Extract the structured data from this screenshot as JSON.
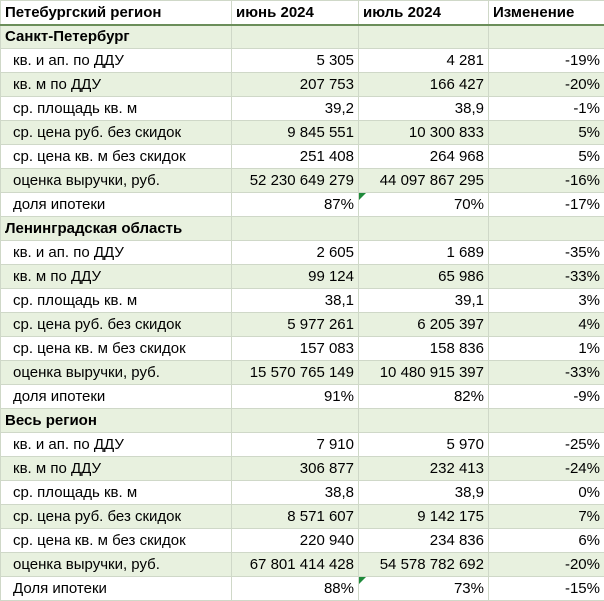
{
  "header": [
    "Петебургский регион",
    "июнь 2024",
    "июль 2024",
    "Изменение"
  ],
  "sections": [
    {
      "title": "Санкт-Петербург",
      "rows": [
        {
          "label": "кв. и ап. по ДДУ",
          "jun": "5 305",
          "jul": "4 281",
          "change": "-19%"
        },
        {
          "label": "кв. м по ДДУ",
          "jun": "207 753",
          "jul": "166 427",
          "change": "-20%"
        },
        {
          "label": "ср. площадь кв. м",
          "jun": "39,2",
          "jul": "38,9",
          "change": "-1%"
        },
        {
          "label": "ср. цена руб. без скидок",
          "jun": "9 845 551",
          "jul": "10 300 833",
          "change": "5%"
        },
        {
          "label": "ср. цена кв. м без скидок",
          "jun": "251 408",
          "jul": "264 968",
          "change": "5%"
        },
        {
          "label": "оценка выручки, руб.",
          "jun": "52 230 649 279",
          "jul": "44 097 867 295",
          "change": "-16%"
        },
        {
          "label": "доля ипотеки",
          "jun": "87%",
          "jul": "70%",
          "change": "-17%"
        }
      ]
    },
    {
      "title": "Ленинградская область",
      "rows": [
        {
          "label": "кв. и ап. по ДДУ",
          "jun": "2 605",
          "jul": "1 689",
          "change": "-35%"
        },
        {
          "label": "кв. м по ДДУ",
          "jun": "99 124",
          "jul": "65 986",
          "change": "-33%"
        },
        {
          "label": "ср. площадь кв. м",
          "jun": "38,1",
          "jul": "39,1",
          "change": "3%"
        },
        {
          "label": "ср. цена руб. без скидок",
          "jun": "5 977 261",
          "jul": "6 205 397",
          "change": "4%"
        },
        {
          "label": "ср. цена кв. м без скидок",
          "jun": "157 083",
          "jul": "158 836",
          "change": "1%"
        },
        {
          "label": "оценка выручки, руб.",
          "jun": "15 570 765 149",
          "jul": "10 480 915 397",
          "change": "-33%"
        },
        {
          "label": "доля ипотеки",
          "jun": "91%",
          "jul": "82%",
          "change": "-9%"
        }
      ]
    },
    {
      "title": "Весь регион",
      "rows": [
        {
          "label": "кв. и ап. по ДДУ",
          "jun": "7 910",
          "jul": "5 970",
          "change": "-25%"
        },
        {
          "label": "кв. м по ДДУ",
          "jun": "306 877",
          "jul": "232 413",
          "change": "-24%"
        },
        {
          "label": "ср. площадь кв. м",
          "jun": "38,8",
          "jul": "38,9",
          "change": "0%"
        },
        {
          "label": "ср. цена руб. без скидок",
          "jun": "8 571 607",
          "jul": "9 142 175",
          "change": "7%"
        },
        {
          "label": "ср. цена кв. м без скидок",
          "jun": "220 940",
          "jul": "234 836",
          "change": "6%"
        },
        {
          "label": "оценка выручки, руб.",
          "jun": "67 801 414 428",
          "jul": "54 578 782 692",
          "change": "-20%"
        },
        {
          "label": "Доля ипотеки",
          "jun": "88%",
          "jul": "73%",
          "change": "-15%"
        }
      ]
    }
  ]
}
